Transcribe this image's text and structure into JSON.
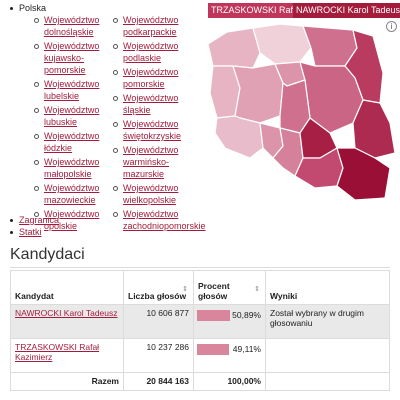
{
  "regions": {
    "root": "Polska",
    "left_column": [
      "Województwo dolnośląskie",
      "Województwo kujawsko-pomorskie",
      "Województwo lubelskie",
      "Województwo lubuskie",
      "Województwo łódzkie",
      "Województwo małopolskie",
      "Województwo mazowieckie",
      "Województwo opolskie"
    ],
    "right_column": [
      "Województwo podkarpackie",
      "Województwo podlaskie",
      "Województwo pomorskie",
      "Województwo śląskie",
      "Województwo świętokrzyskie",
      "Województwo warmińsko-mazurskie",
      "Województwo wielkopolskie",
      "Województwo zachodniopomorskie"
    ],
    "extra": [
      "Zagranica",
      "Statki"
    ]
  },
  "map": {
    "legend_a": "TRZASKOWSKI Rafał Kazimierz",
    "legend_b": "NAWROCKI Karol Tadeusz",
    "info": "i",
    "colors": {
      "a": "#c0365a",
      "b": "#a31c3c",
      "light": "#eec4cf"
    }
  },
  "section": {
    "title": "Kandydaci"
  },
  "table": {
    "headers": {
      "candidate": "Kandydat",
      "votes": "Liczba głosów",
      "percent": "Procent głosów",
      "result": "Wyniki"
    },
    "sort_icon": "⇕",
    "rows": [
      {
        "name": "NAWROCKI Karol Tadeusz",
        "votes": "10 606 877",
        "percent_label": "50,89%",
        "percent": 50.89,
        "result": "Został wybrany w drugim głosowaniu"
      },
      {
        "name": "TRZASKOWSKI Rafał Kazimierz",
        "votes": "10 237 286",
        "percent_label": "49,11%",
        "percent": 49.11,
        "result": ""
      }
    ],
    "total": {
      "label": "Razem",
      "votes": "20 844 163",
      "percent": "100,00%"
    }
  }
}
